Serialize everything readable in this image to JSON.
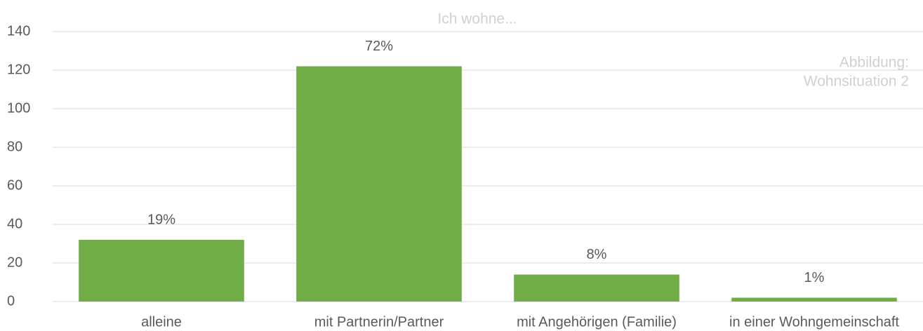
{
  "chart_data": {
    "type": "bar",
    "title": "Ich wohne...",
    "annotation": [
      "Abbildung:",
      "Wohnsituation 2"
    ],
    "categories": [
      "alleine",
      "mit Partnerin/Partner",
      "mit Angehörigen (Familie)",
      "in einer Wohngemeinschaft"
    ],
    "values": [
      32,
      122,
      14,
      2
    ],
    "bar_labels": [
      "19%",
      "72%",
      "8%",
      "1%"
    ],
    "color": "#70ad47",
    "ylim": [
      0,
      140
    ],
    "yticks": [
      0,
      20,
      40,
      60,
      80,
      100,
      120,
      140
    ],
    "grid": true
  }
}
